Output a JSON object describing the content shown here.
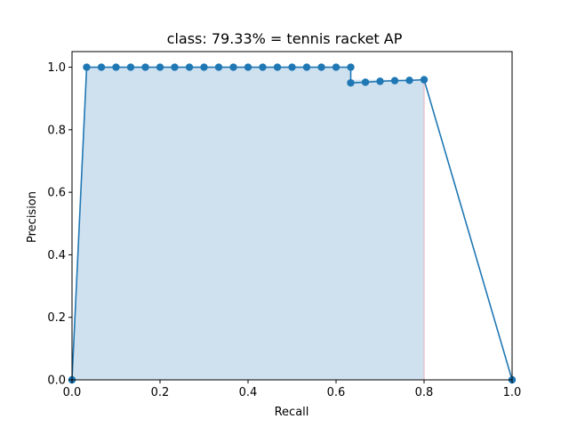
{
  "chart_data": {
    "type": "line",
    "title": "class: 79.33% = tennis racket AP",
    "xlabel": "Recall",
    "ylabel": "Precision",
    "xlim": [
      0.0,
      1.0
    ],
    "ylim": [
      0.0,
      1.05
    ],
    "xticks": [
      "0.0",
      "0.2",
      "0.4",
      "0.6",
      "0.8",
      "1.0"
    ],
    "yticks": [
      "0.0",
      "0.2",
      "0.4",
      "0.6",
      "0.8",
      "1.0"
    ],
    "grid": false,
    "legend": "none",
    "colors": {
      "line": "#1f77b4",
      "fill": "#cfe1ef",
      "drop_line": "#f0b8c0"
    },
    "series": [
      {
        "x": [
          0.0,
          0.0333,
          0.0667,
          0.1,
          0.1333,
          0.1667,
          0.2,
          0.2333,
          0.2667,
          0.3,
          0.3333,
          0.3667,
          0.4,
          0.4333,
          0.4667,
          0.5,
          0.5333,
          0.5667,
          0.6,
          0.6333,
          0.6333,
          0.6667,
          0.7,
          0.7333,
          0.7667,
          0.8,
          1.0
        ],
        "y": [
          0.0,
          1.0,
          1.0,
          1.0,
          1.0,
          1.0,
          1.0,
          1.0,
          1.0,
          1.0,
          1.0,
          1.0,
          1.0,
          1.0,
          1.0,
          1.0,
          1.0,
          1.0,
          1.0,
          1.0,
          0.95,
          0.952,
          0.955,
          0.957,
          0.958,
          0.96,
          0.0
        ]
      }
    ],
    "area": {
      "x": [
        0.0,
        0.0333,
        0.6333,
        0.6333,
        0.8,
        0.8
      ],
      "y": [
        0.0,
        1.0,
        1.0,
        0.96,
        0.96,
        0.0
      ]
    }
  }
}
